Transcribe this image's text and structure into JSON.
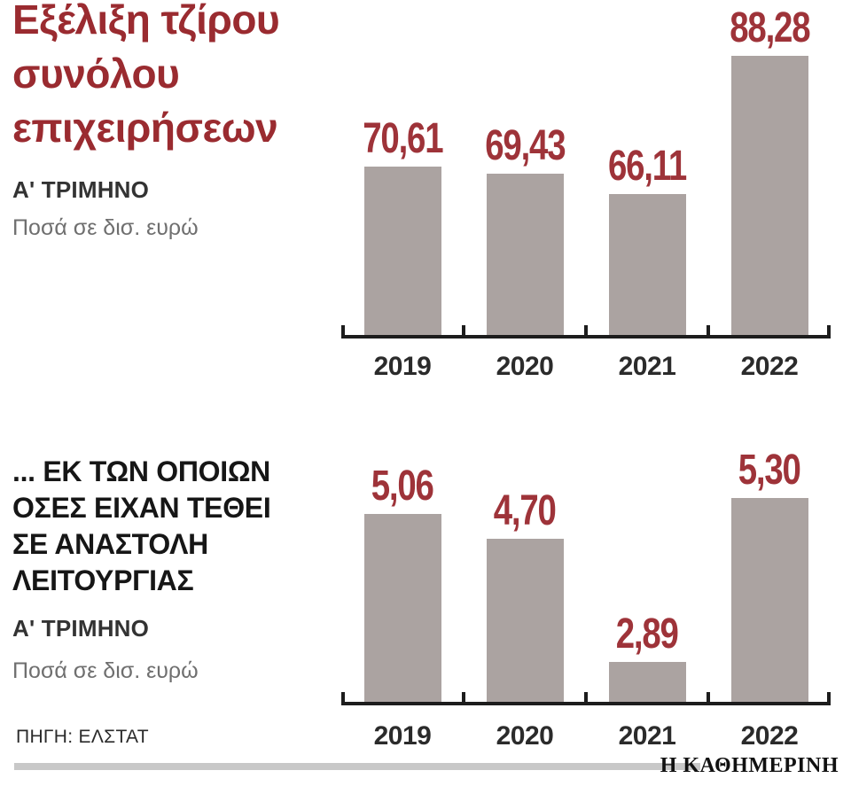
{
  "colors": {
    "title_red": "#9a2b30",
    "value_red": "#9e3339",
    "bar_gray": "#aba3a1",
    "axis_black": "#1d1d1d",
    "footer_bar_gray": "#c8c8c8"
  },
  "source": {
    "label": "ΠΗΓΗ: ΕΛΣΤΑΤ"
  },
  "brand": {
    "label": "Η ΚΑΘΗΜΕΡΙΝΗ"
  },
  "chart_data": [
    {
      "type": "bar",
      "title": "Εξέλιξη τζίρου συνόλου επιχειρήσεων",
      "title_lines": [
        "Εξέλιξη τζίρου",
        "συνόλου",
        "επιχειρήσεων"
      ],
      "subtitle": "Α' ΤΡΙΜΗΝΟ",
      "unit_label": "Ποσά σε δισ. ευρώ",
      "categories": [
        "2019",
        "2020",
        "2021",
        "2022"
      ],
      "values": [
        70.61,
        69.43,
        66.11,
        88.28
      ],
      "value_labels": [
        "70,61",
        "69,43",
        "66,11",
        "88,28"
      ],
      "ylim": [
        43.3,
        88.28
      ],
      "grid": false,
      "legend": "none"
    },
    {
      "type": "bar",
      "title": "... ΕΚ ΤΩΝ ΟΠΟΙΩΝ ΟΣΕΣ ΕΙΧΑΝ ΤΕΘΕΙ ΣΕ ΑΝΑΣΤΟΛΗ ΛΕΙΤΟΥΡΓΙΑΣ",
      "title_lines": [
        "... ΕΚ ΤΩΝ ΟΠΟΙΩΝ",
        "ΟΣΕΣ ΕΙΧΑΝ ΤΕΘΕΙ",
        "ΣΕ ΑΝΑΣΤΟΛΗ",
        "ΛΕΙΤΟΥΡΓΙΑΣ"
      ],
      "subtitle": "Α' ΤΡΙΜΗΝΟ",
      "unit_label": "Ποσά σε δισ. ευρώ",
      "categories": [
        "2019",
        "2020",
        "2021",
        "2022"
      ],
      "values": [
        5.06,
        4.7,
        2.89,
        5.3
      ],
      "value_labels": [
        "5,06",
        "4,70",
        "2,89",
        "5,30"
      ],
      "ylim": [
        2.28,
        5.3
      ],
      "grid": false,
      "legend": "none"
    }
  ]
}
